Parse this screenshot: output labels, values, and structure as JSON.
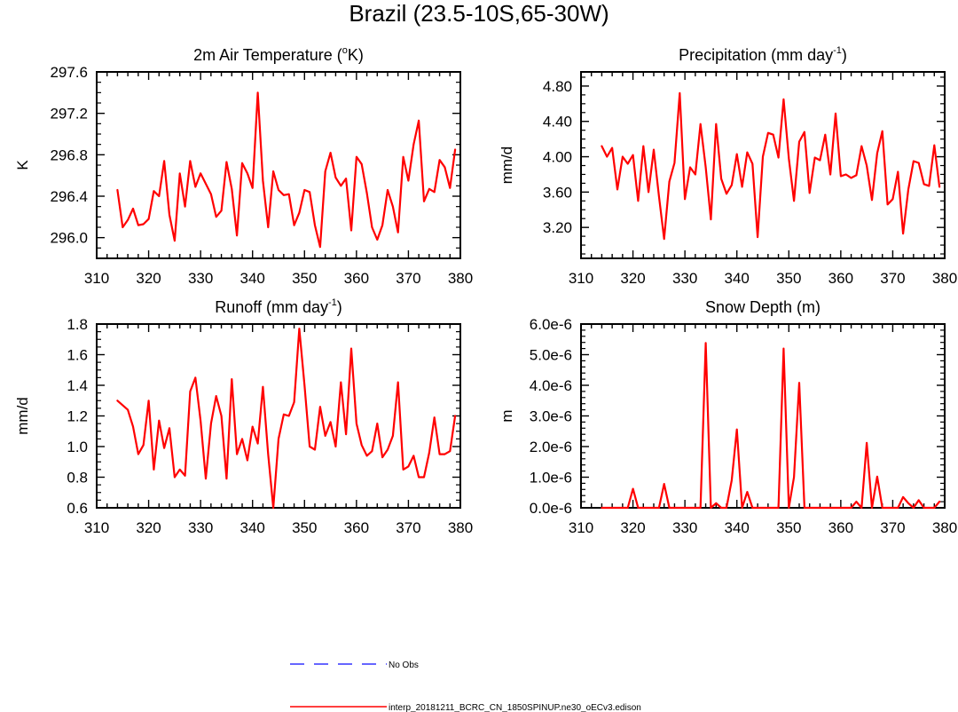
{
  "title": "Brazil (23.5-10S,65-30W)",
  "chart_data": [
    {
      "type": "line",
      "title": "2m Air Temperature (",
      "title_sup": "o",
      "title_suffix": "K)",
      "ylabel": "K",
      "xlim": [
        310,
        380
      ],
      "ylim": [
        295.8,
        297.6
      ],
      "xticks": [
        310,
        320,
        330,
        340,
        350,
        360,
        370,
        380
      ],
      "yticks": [
        "296.0",
        "296.4",
        "296.8",
        "297.2",
        "297.6"
      ],
      "x": [
        314,
        315,
        316,
        317,
        318,
        319,
        320,
        321,
        322,
        323,
        324,
        325,
        326,
        327,
        328,
        329,
        330,
        331,
        332,
        333,
        334,
        335,
        336,
        337,
        338,
        339,
        340,
        341,
        342,
        343,
        344,
        345,
        346,
        347,
        348,
        349,
        350,
        351,
        352,
        353,
        354,
        355,
        356,
        357,
        358,
        359,
        360,
        361,
        362,
        363,
        364,
        365,
        366,
        367,
        368,
        369,
        370,
        371,
        372,
        373,
        374,
        375,
        376,
        377,
        378,
        379
      ],
      "series": [
        {
          "color": "#ff0000",
          "values": [
            296.46,
            296.1,
            296.17,
            296.28,
            296.12,
            296.13,
            296.18,
            296.45,
            296.4,
            296.74,
            296.22,
            295.97,
            296.62,
            296.3,
            296.74,
            296.49,
            296.62,
            296.52,
            296.42,
            296.2,
            296.26,
            296.73,
            296.47,
            296.02,
            296.72,
            296.62,
            296.48,
            297.4,
            296.55,
            296.1,
            296.64,
            296.46,
            296.41,
            296.42,
            296.12,
            296.24,
            296.46,
            296.44,
            296.12,
            295.91,
            296.64,
            296.82,
            296.58,
            296.5,
            296.57,
            296.07,
            296.78,
            296.71,
            296.43,
            296.1,
            295.98,
            296.12,
            296.46,
            296.3,
            296.05,
            296.78,
            296.55,
            296.9,
            297.13,
            296.35,
            296.47,
            296.44,
            296.75,
            296.68,
            296.48,
            296.85
          ]
        }
      ]
    },
    {
      "type": "line",
      "title": "Precipitation (mm day",
      "title_sup": "-1",
      "title_suffix": ")",
      "ylabel": "mm/d",
      "xlim": [
        310,
        380
      ],
      "ylim": [
        2.85,
        4.96
      ],
      "xticks": [
        310,
        320,
        330,
        340,
        350,
        360,
        370,
        380
      ],
      "yticks": [
        "3.20",
        "3.60",
        "4.00",
        "4.40",
        "4.80"
      ],
      "x": [
        314,
        315,
        316,
        317,
        318,
        319,
        320,
        321,
        322,
        323,
        324,
        325,
        326,
        327,
        328,
        329,
        330,
        331,
        332,
        333,
        334,
        335,
        336,
        337,
        338,
        339,
        340,
        341,
        342,
        343,
        344,
        345,
        346,
        347,
        348,
        349,
        350,
        351,
        352,
        353,
        354,
        355,
        356,
        357,
        358,
        359,
        360,
        361,
        362,
        363,
        364,
        365,
        366,
        367,
        368,
        369,
        370,
        371,
        372,
        373,
        374,
        375,
        376,
        377,
        378,
        379
      ],
      "series": [
        {
          "color": "#ff0000",
          "values": [
            4.12,
            4.0,
            4.1,
            3.63,
            4.0,
            3.92,
            4.02,
            3.5,
            4.12,
            3.6,
            4.08,
            3.55,
            3.07,
            3.72,
            3.93,
            4.72,
            3.52,
            3.88,
            3.8,
            4.37,
            3.88,
            3.29,
            4.37,
            3.75,
            3.58,
            3.68,
            4.03,
            3.66,
            4.05,
            3.92,
            3.09,
            4.0,
            4.27,
            4.25,
            3.99,
            4.65,
            3.98,
            3.5,
            4.17,
            4.28,
            3.59,
            3.99,
            3.96,
            4.25,
            3.8,
            4.49,
            3.78,
            3.8,
            3.76,
            3.79,
            4.12,
            3.9,
            3.51,
            4.04,
            4.29,
            3.46,
            3.52,
            3.83,
            3.13,
            3.63,
            3.95,
            3.93,
            3.69,
            3.67,
            4.13,
            3.66
          ]
        }
      ]
    },
    {
      "type": "line",
      "title": "Runoff (mm day",
      "title_sup": "-1",
      "title_suffix": ")",
      "ylabel": "mm/d",
      "xlim": [
        310,
        380
      ],
      "ylim": [
        0.6,
        1.8
      ],
      "xticks": [
        310,
        320,
        330,
        340,
        350,
        360,
        370,
        380
      ],
      "yticks": [
        "0.6",
        "0.8",
        "1.0",
        "1.2",
        "1.4",
        "1.6",
        "1.8"
      ],
      "x": [
        314,
        316,
        317,
        318,
        319,
        320,
        321,
        322,
        323,
        324,
        325,
        326,
        327,
        328,
        329,
        330,
        331,
        332,
        333,
        334,
        335,
        336,
        337,
        338,
        339,
        340,
        341,
        342,
        343,
        344,
        345,
        346,
        347,
        348,
        349,
        350,
        351,
        352,
        353,
        354,
        355,
        356,
        357,
        358,
        359,
        360,
        361,
        362,
        363,
        364,
        365,
        366,
        367,
        368,
        369,
        370,
        371,
        372,
        373,
        374,
        375,
        376,
        377,
        378,
        379
      ],
      "series": [
        {
          "color": "#ff0000",
          "values": [
            1.3,
            1.24,
            1.13,
            0.95,
            1.01,
            1.3,
            0.85,
            1.17,
            0.99,
            1.12,
            0.8,
            0.85,
            0.81,
            1.36,
            1.45,
            1.17,
            0.79,
            1.15,
            1.33,
            1.2,
            0.79,
            1.44,
            0.95,
            1.05,
            0.91,
            1.13,
            1.02,
            1.39,
            0.95,
            0.6,
            1.05,
            1.21,
            1.2,
            1.29,
            1.77,
            1.4,
            1.0,
            0.98,
            1.26,
            1.07,
            1.16,
            1.0,
            1.42,
            1.08,
            1.64,
            1.15,
            1.01,
            0.94,
            0.97,
            1.15,
            0.93,
            0.98,
            1.07,
            1.42,
            0.85,
            0.87,
            0.94,
            0.8,
            0.8,
            0.96,
            1.19,
            0.95,
            0.95,
            0.97,
            1.2
          ]
        }
      ]
    },
    {
      "type": "line",
      "title": "Snow Depth (m)",
      "title_sup": "",
      "title_suffix": "",
      "ylabel": "m",
      "xlim": [
        310,
        380
      ],
      "ylim": [
        0,
        6e-06
      ],
      "xticks": [
        310,
        320,
        330,
        340,
        350,
        360,
        370,
        380
      ],
      "yticks": [
        "0.0e-6",
        "1.0e-6",
        "2.0e-6",
        "3.0e-6",
        "4.0e-6",
        "5.0e-6",
        "6.0e-6"
      ],
      "ytick_values": [
        0,
        1e-06,
        2e-06,
        3e-06,
        4e-06,
        5e-06,
        6e-06
      ],
      "x": [
        314,
        315,
        316,
        317,
        318,
        319,
        320,
        321,
        322,
        323,
        324,
        325,
        326,
        327,
        328,
        329,
        330,
        331,
        332,
        333,
        334,
        335,
        336,
        337,
        338,
        339,
        340,
        341,
        342,
        343,
        344,
        345,
        346,
        347,
        348,
        349,
        350,
        351,
        352,
        353,
        354,
        355,
        356,
        357,
        358,
        359,
        360,
        361,
        362,
        363,
        364,
        365,
        366,
        367,
        368,
        369,
        370,
        371,
        372,
        373,
        374,
        375,
        376,
        377,
        378,
        379
      ],
      "series": [
        {
          "color": "#ff0000",
          "values": [
            0,
            0,
            0,
            0,
            0,
            0,
            6.2e-07,
            0,
            0,
            0,
            0,
            0,
            7.8e-07,
            0,
            0,
            0,
            0,
            0,
            0,
            0,
            5.38e-06,
            0,
            1.5e-07,
            0,
            0,
            9e-07,
            2.56e-06,
            0,
            5.2e-07,
            0,
            0,
            0,
            0,
            0,
            0,
            5.2e-06,
            0,
            1e-06,
            4.08e-06,
            0,
            0,
            0,
            0,
            0,
            0,
            0,
            0,
            0,
            0,
            2e-07,
            0,
            2.12e-06,
            0,
            1.02e-06,
            0,
            0,
            0,
            0,
            3.5e-07,
            1.5e-07,
            0,
            2.5e-07,
            0,
            0,
            0,
            2e-07
          ]
        }
      ]
    }
  ],
  "legend": [
    {
      "label": "No Obs",
      "color": "#3333ff",
      "style": "dashed"
    },
    {
      "label": "interp_20181211_BCRC_CN_1850SPINUP.ne30_oECv3.edison",
      "color": "#ff0000",
      "style": "solid"
    }
  ]
}
